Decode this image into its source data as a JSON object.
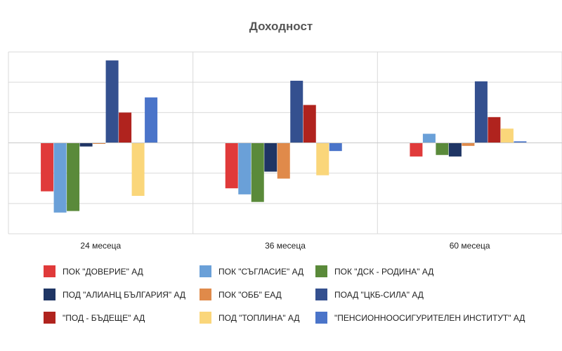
{
  "chart_data": {
    "type": "bar",
    "title": "Доходност",
    "categories": [
      "24 месеца",
      "36 месеца",
      "60 месеца"
    ],
    "ylim": [
      -3,
      3
    ],
    "grid": true,
    "legend_position": "bottom",
    "series": [
      {
        "name": "ПОК \"ДОВЕРИЕ\" АД",
        "color": "#e03a3a",
        "values": [
          -1.6,
          -1.5,
          -0.45
        ]
      },
      {
        "name": "ПОК \"СЪГЛАСИЕ\" АД",
        "color": "#6aa0d8",
        "values": [
          -2.3,
          -1.7,
          0.3
        ]
      },
      {
        "name": "ПОК \"ДСК - РОДИНА\" АД",
        "color": "#5a8a3a",
        "values": [
          -2.25,
          -1.95,
          -0.4
        ]
      },
      {
        "name": "ПОД \"АЛИАНЦ БЪЛГАРИЯ\" АД",
        "color": "#1f3564",
        "values": [
          -0.12,
          -0.95,
          -0.45
        ]
      },
      {
        "name": "ПОК \"ОББ\" ЕАД",
        "color": "#e08a4a",
        "values": [
          -0.03,
          -1.18,
          -0.1
        ]
      },
      {
        "name": "ПОАД \"ЦКБ-СИЛА\" АД",
        "color": "#34508f",
        "values": [
          2.72,
          2.05,
          2.03
        ]
      },
      {
        "name": "\"ПОД - БЪДЕЩЕ\" АД",
        "color": "#b0231e",
        "values": [
          1.0,
          1.25,
          0.85
        ]
      },
      {
        "name": "ПОД \"ТОПЛИНА\" АД",
        "color": "#fad67a",
        "values": [
          -1.75,
          -1.07,
          0.47
        ]
      },
      {
        "name": "\"ПЕНСИОННООСИГУРИТЕЛЕН ИНСТИТУТ\" АД",
        "color": "#4a74c9",
        "values": [
          1.5,
          -0.27,
          0.05
        ]
      }
    ]
  }
}
